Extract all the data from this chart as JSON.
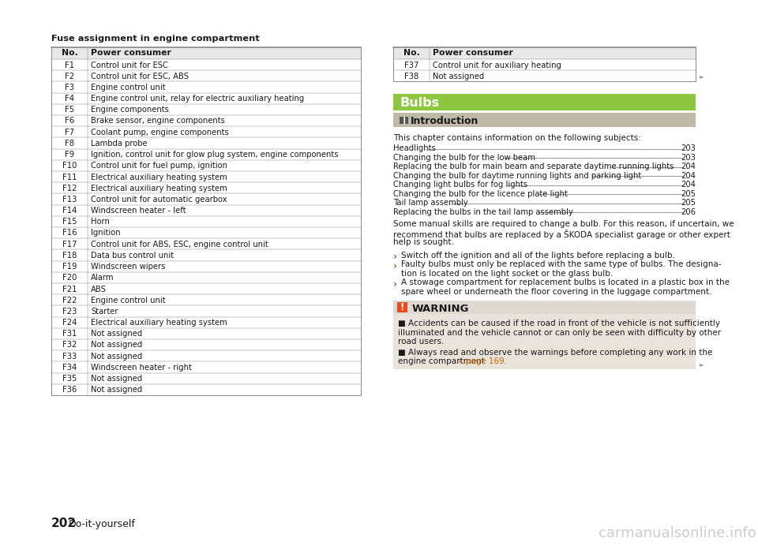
{
  "page_bg": "#ffffff",
  "left_table_title": "Fuse assignment in engine compartment",
  "left_table_header": [
    "No.",
    "Power consumer"
  ],
  "left_table_rows": [
    [
      "F1",
      "Control unit for ESC"
    ],
    [
      "F2",
      "Control unit for ESC, ABS"
    ],
    [
      "F3",
      "Engine control unit"
    ],
    [
      "F4",
      "Engine control unit, relay for electric auxiliary heating"
    ],
    [
      "F5",
      "Engine components"
    ],
    [
      "F6",
      "Brake sensor, engine components"
    ],
    [
      "F7",
      "Coolant pump, engine components"
    ],
    [
      "F8",
      "Lambda probe"
    ],
    [
      "F9",
      "Ignition, control unit for glow plug system, engine components"
    ],
    [
      "F10",
      "Control unit for fuel pump, ignition"
    ],
    [
      "F11",
      "Electrical auxiliary heating system"
    ],
    [
      "F12",
      "Electrical auxiliary heating system"
    ],
    [
      "F13",
      "Control unit for automatic gearbox"
    ],
    [
      "F14",
      "Windscreen heater - left"
    ],
    [
      "F15",
      "Horn"
    ],
    [
      "F16",
      "Ignition"
    ],
    [
      "F17",
      "Control unit for ABS, ESC, engine control unit"
    ],
    [
      "F18",
      "Data bus control unit"
    ],
    [
      "F19",
      "Windscreen wipers"
    ],
    [
      "F20",
      "Alarm"
    ],
    [
      "F21",
      "ABS"
    ],
    [
      "F22",
      "Engine control unit"
    ],
    [
      "F23",
      "Starter"
    ],
    [
      "F24",
      "Electrical auxiliary heating system"
    ],
    [
      "F31",
      "Not assigned"
    ],
    [
      "F32",
      "Not assigned"
    ],
    [
      "F33",
      "Not assigned"
    ],
    [
      "F34",
      "Windscreen heater - right"
    ],
    [
      "F35",
      "Not assigned"
    ],
    [
      "F36",
      "Not assigned"
    ]
  ],
  "right_table_header": [
    "No.",
    "Power consumer"
  ],
  "right_table_rows": [
    [
      "F37",
      "Control unit for auxiliary heating"
    ],
    [
      "F38",
      "Not assigned"
    ]
  ],
  "section_title": "Bulbs",
  "section_title_bg": "#8dc63f",
  "subsection_title": "Introduction",
  "subsection_title_bg": "#bfb9a8",
  "intro_text": "This chapter contains information on the following subjects:",
  "toc_entries": [
    [
      "Headlights",
      "203"
    ],
    [
      "Changing the bulb for the low beam",
      "203"
    ],
    [
      "Replacing the bulb for main beam and separate daytime running lights",
      "204"
    ],
    [
      "Changing the bulb for daytime running lights and parking light",
      "204"
    ],
    [
      "Changing light bulbs for fog lights",
      "204"
    ],
    [
      "Changing the bulb for the licence plate light",
      "205"
    ],
    [
      "Tail lamp assembly",
      "205"
    ],
    [
      "Replacing the bulbs in the tail lamp assembly",
      "206"
    ]
  ],
  "body_text_lines": [
    "Some manual skills are required to change a bulb. For this reason, if uncertain, we",
    "recommend that bulbs are replaced by a ŠKODA specialist garage or other expert",
    "help is sought."
  ],
  "bullet_points": [
    [
      "Switch off the ignition and all of the lights before replacing a bulb."
    ],
    [
      "Faulty bulbs must only be replaced with the same type of bulbs. The designa-",
      "tion is located on the light socket or the glass bulb."
    ],
    [
      "A stowage compartment for replacement bulbs is located in a plastic box in the",
      "spare wheel or underneath the floor covering in the luggage compartment."
    ]
  ],
  "warning_title": "WARNING",
  "warning_bg": "#e8e4dc",
  "warning_header_bg": "#dedad2",
  "warning_icon_bg": "#e84c1e",
  "warning_text1_lines": [
    "■ Accidents can be caused if the road in front of the vehicle is not sufficiently",
    "illuminated and the vehicle cannot or can only be seen with difficulty by other",
    "road users."
  ],
  "warning_text2_line1": "■ Always read and observe the warnings before completing any work in the",
  "warning_text2_line2_normal": "engine compartment ",
  "warning_text2_line2_link": "» page 169.",
  "page_number": "202",
  "page_label": "  Do-it-yourself",
  "footer_watermark": "carmanualsonline.info",
  "text_color": "#1a1a1a",
  "link_color": "#cc6600",
  "bullet_color": "#4a8a2a",
  "small_font": 7.2,
  "body_font": 7.5,
  "header_font": 7.8
}
